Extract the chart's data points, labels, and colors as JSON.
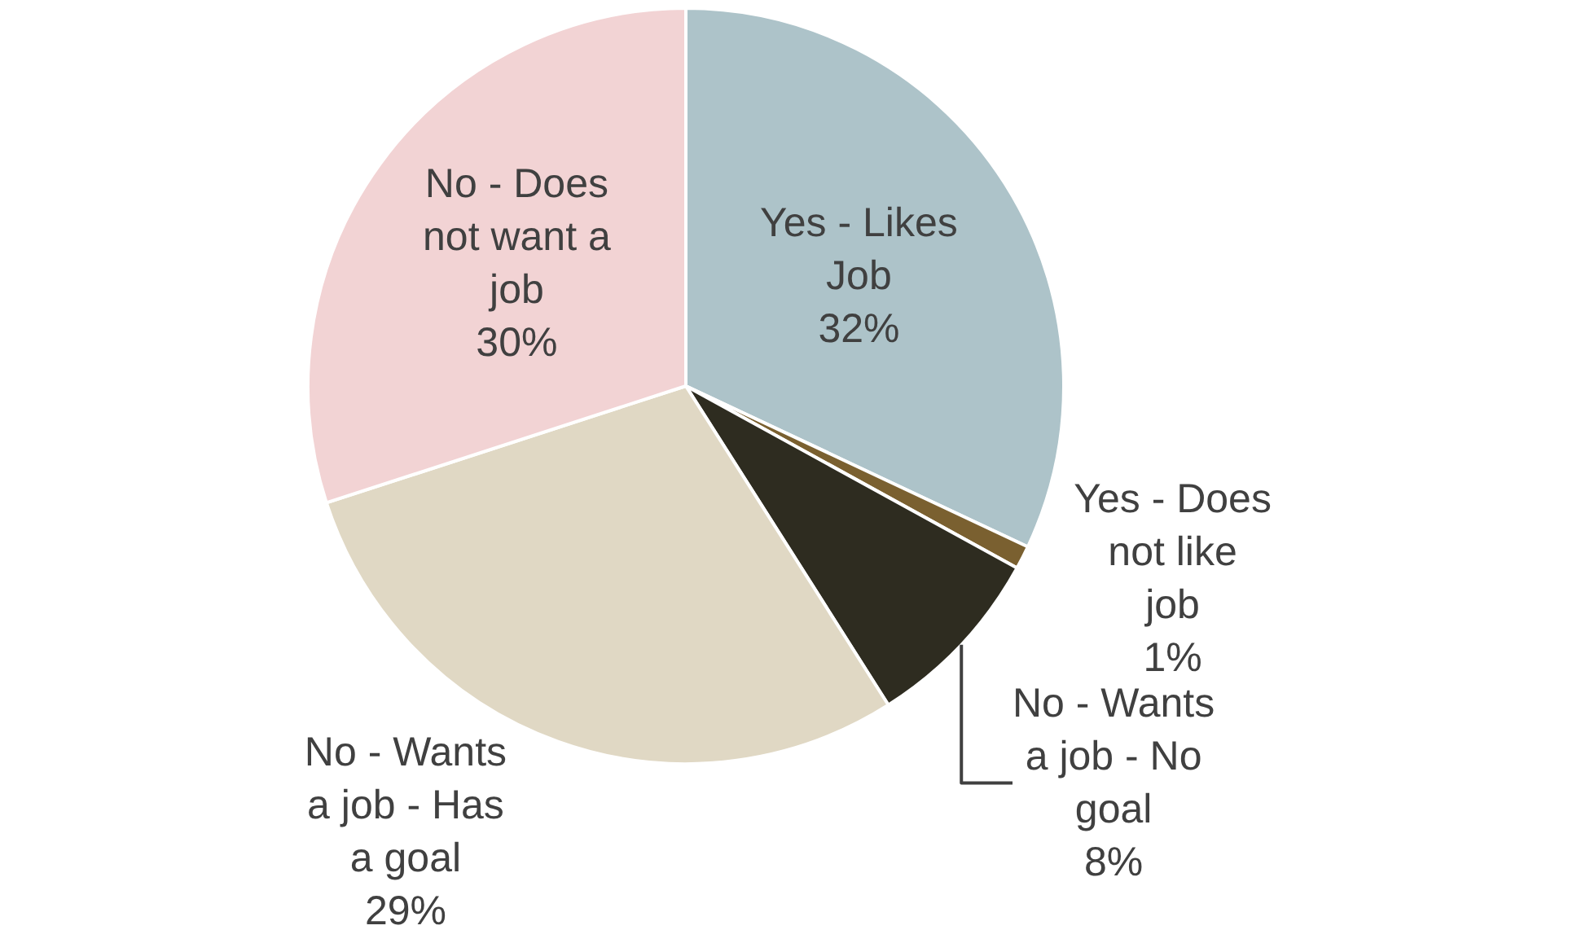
{
  "chart_data": {
    "type": "pie",
    "categories": [
      "Yes - Likes Job",
      "Yes - Does not like job",
      "No - Wants a job - No goal",
      "No - Wants a job - Has a goal",
      "No - Does not want a job"
    ],
    "values": [
      32,
      1,
      8,
      29,
      30
    ],
    "colors": [
      "#adc3c9",
      "#7a6030",
      "#2e2c20",
      "#e0d8c4",
      "#f2d3d4"
    ],
    "value_labels": [
      "32%",
      "1%",
      "8%",
      "29%",
      "30%"
    ],
    "legend": false
  }
}
